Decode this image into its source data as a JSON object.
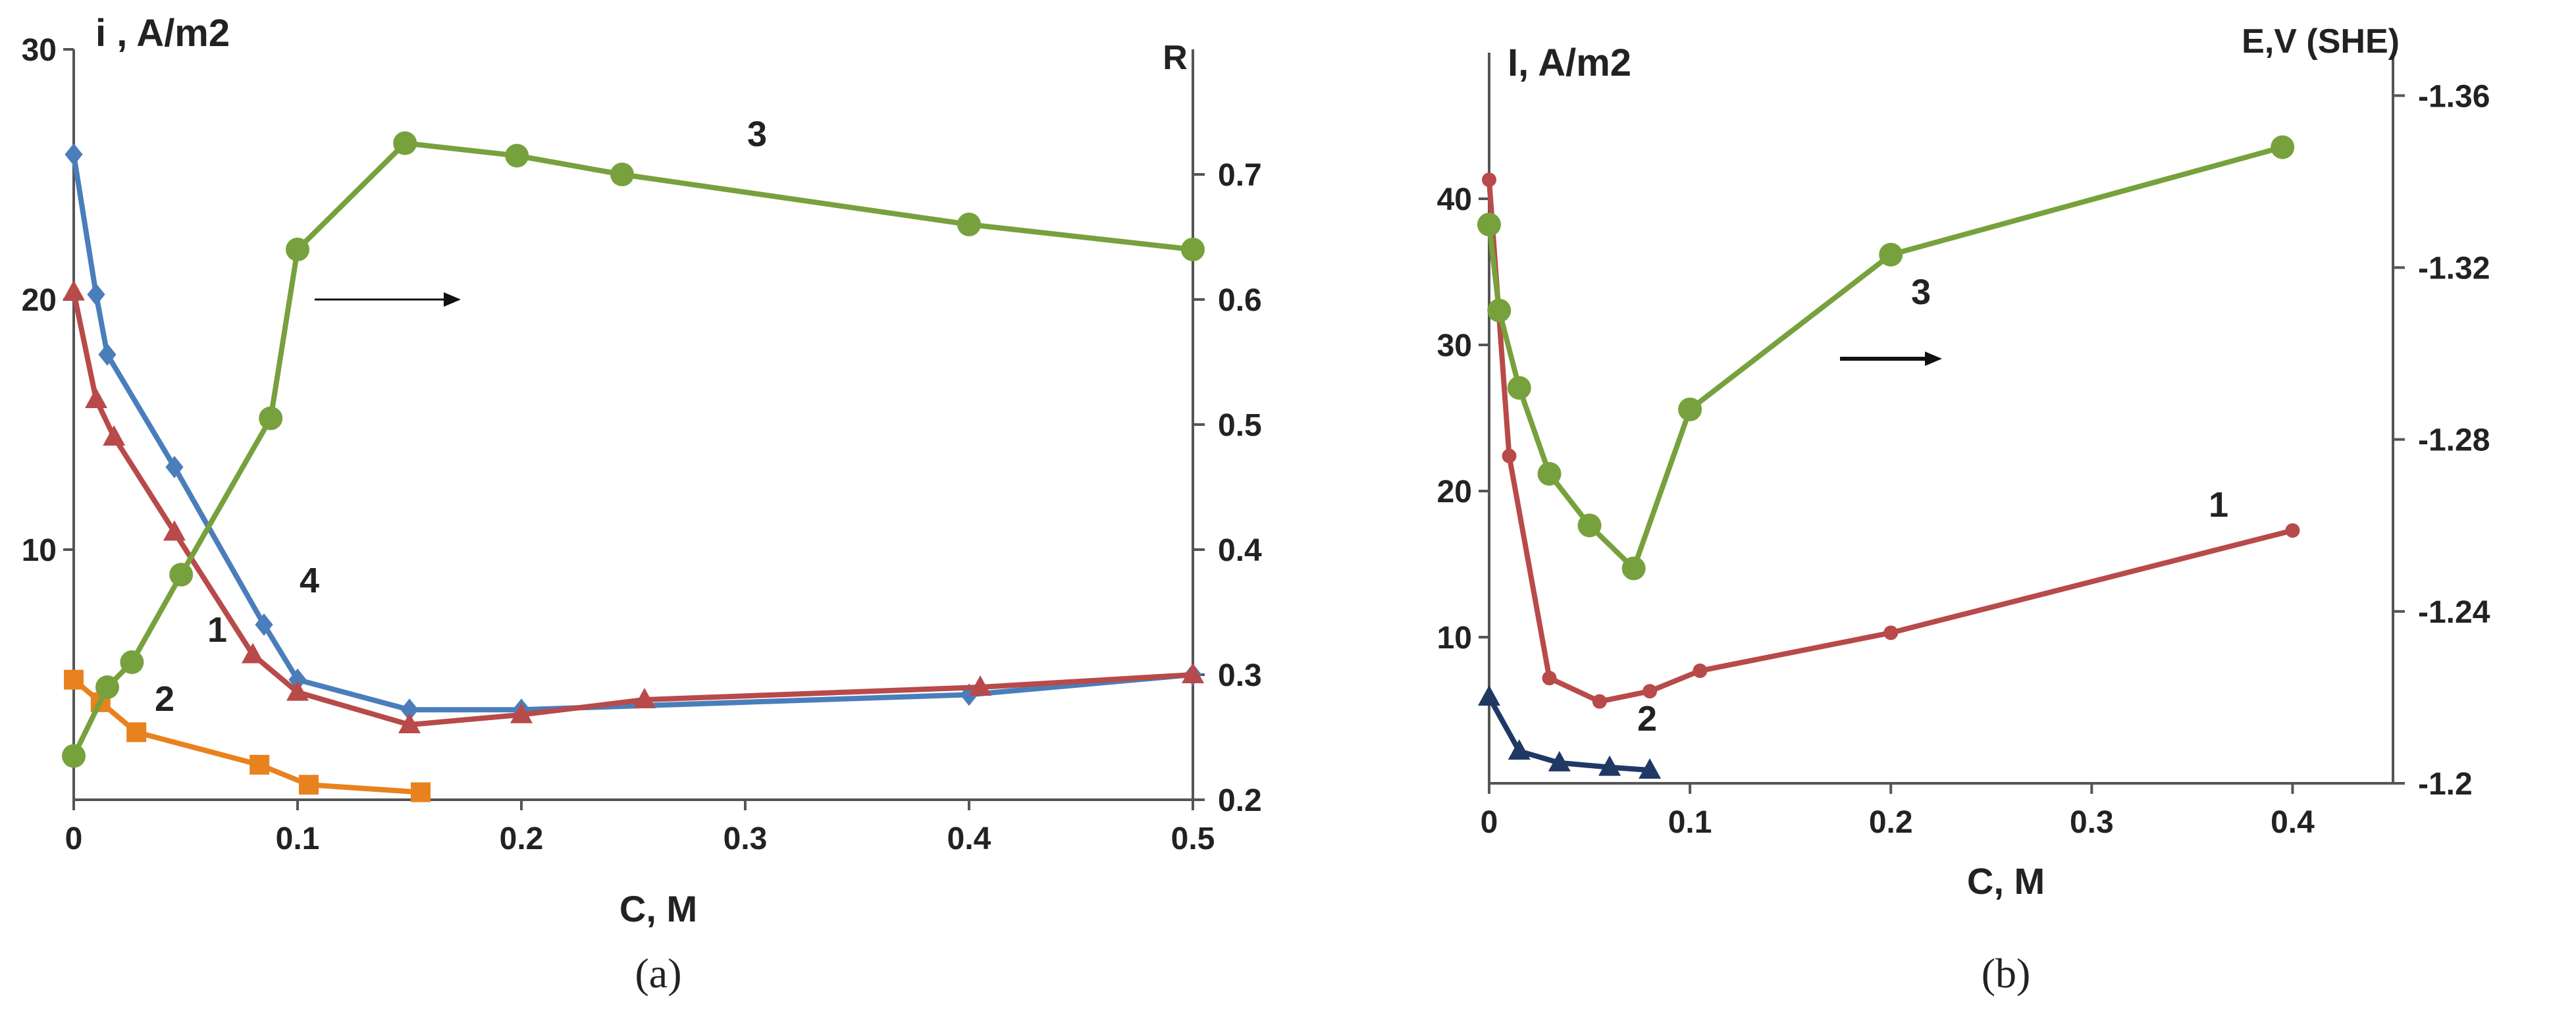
{
  "chart_data": [
    {
      "panel": "(a)",
      "type": "line",
      "xlabel": "C, M",
      "ylabel_left": "i , A/m2",
      "ylabel_right": "R",
      "xlim": [
        0,
        0.5
      ],
      "ylim_left": [
        0,
        30
      ],
      "ylim_right": [
        0.2,
        0.8
      ],
      "x_ticks": [
        "0",
        "0.1",
        "0.2",
        "0.3",
        "0.4",
        "0.5"
      ],
      "y_left_ticks": [
        "10",
        "20",
        "30"
      ],
      "y_right_ticks": [
        "0.2",
        "0.3",
        "0.4",
        "0.5",
        "0.6",
        "0.7"
      ],
      "series": [
        {
          "label": "4",
          "axis": "left",
          "color": "#4a7ebb",
          "marker": "diamond",
          "x": [
            0,
            0.01,
            0.015,
            0.045,
            0.085,
            0.1,
            0.15,
            0.2,
            0.4,
            0.5
          ],
          "y": [
            25.8,
            20.2,
            17.8,
            13.3,
            7.0,
            4.8,
            3.6,
            3.6,
            4.2,
            5.0
          ]
        },
        {
          "label": "1",
          "axis": "left",
          "color": "#b84a4a",
          "marker": "triangle",
          "x": [
            0,
            0.01,
            0.018,
            0.045,
            0.08,
            0.1,
            0.15,
            0.2,
            0.255,
            0.405,
            0.5
          ],
          "y": [
            20.3,
            16.0,
            14.5,
            10.7,
            5.8,
            4.3,
            3.0,
            3.4,
            4.0,
            4.5,
            5.0
          ]
        },
        {
          "label": "2",
          "axis": "left",
          "color": "#e8821e",
          "marker": "square",
          "x": [
            0,
            0.012,
            0.028,
            0.083,
            0.105,
            0.155
          ],
          "y": [
            4.8,
            3.9,
            2.7,
            1.4,
            0.6,
            0.3
          ]
        },
        {
          "label": "3",
          "axis": "right",
          "color": "#77a13c",
          "marker": "circle",
          "x": [
            0,
            0.015,
            0.026,
            0.048,
            0.088,
            0.1,
            0.148,
            0.198,
            0.245,
            0.4,
            0.5
          ],
          "y": [
            0.235,
            0.29,
            0.31,
            0.38,
            0.505,
            0.64,
            0.725,
            0.715,
            0.7,
            0.66,
            0.64
          ]
        }
      ],
      "annotations": [
        "1",
        "2",
        "3",
        "4"
      ],
      "arrow": "right axis"
    },
    {
      "panel": "(b)",
      "type": "line",
      "xlabel": "C, M",
      "ylabel_left": "I, A/m2",
      "ylabel_right": "E,V (SHE)",
      "xlim": [
        0,
        0.45
      ],
      "ylim_left": [
        0,
        50
      ],
      "ylim_right": [
        -1.2,
        -1.37
      ],
      "x_ticks": [
        "0",
        "0.1",
        "0.2",
        "0.3",
        "0.4"
      ],
      "y_left_ticks": [
        "10",
        "20",
        "30",
        "40"
      ],
      "y_right_ticks": [
        "-1.2",
        "-1.24",
        "-1.28",
        "-1.32",
        "-1.36"
      ],
      "series": [
        {
          "label": "1",
          "axis": "left",
          "color": "#b84a4a",
          "marker": "dot",
          "x": [
            0,
            0.01,
            0.03,
            0.055,
            0.08,
            0.105,
            0.2,
            0.4
          ],
          "y": [
            41.3,
            22.4,
            7.2,
            5.6,
            6.3,
            7.7,
            10.3,
            17.3
          ]
        },
        {
          "label": "2",
          "axis": "left",
          "color": "#203864",
          "marker": "triangle",
          "x": [
            0,
            0.015,
            0.035,
            0.06,
            0.08
          ],
          "y": [
            5.9,
            2.2,
            1.4,
            1.1,
            0.9
          ]
        },
        {
          "label": "3",
          "axis": "right",
          "color": "#77a13c",
          "marker": "circle",
          "x": [
            0,
            0.005,
            0.015,
            0.03,
            0.05,
            0.072,
            0.1,
            0.2,
            0.395
          ],
          "y": [
            -1.33,
            -1.31,
            -1.292,
            -1.272,
            -1.26,
            -1.25,
            -1.287,
            -1.323,
            -1.348
          ]
        }
      ],
      "annotations": [
        "1",
        "2",
        "3"
      ],
      "arrow": "right axis"
    }
  ],
  "captions": {
    "a": "(a)",
    "b": "(b)"
  },
  "colors": {
    "axis": "#555555",
    "red": "#b84a4a",
    "blue": "#4a7ebb",
    "orange": "#e8821e",
    "green": "#77a13c",
    "navy": "#203864"
  }
}
